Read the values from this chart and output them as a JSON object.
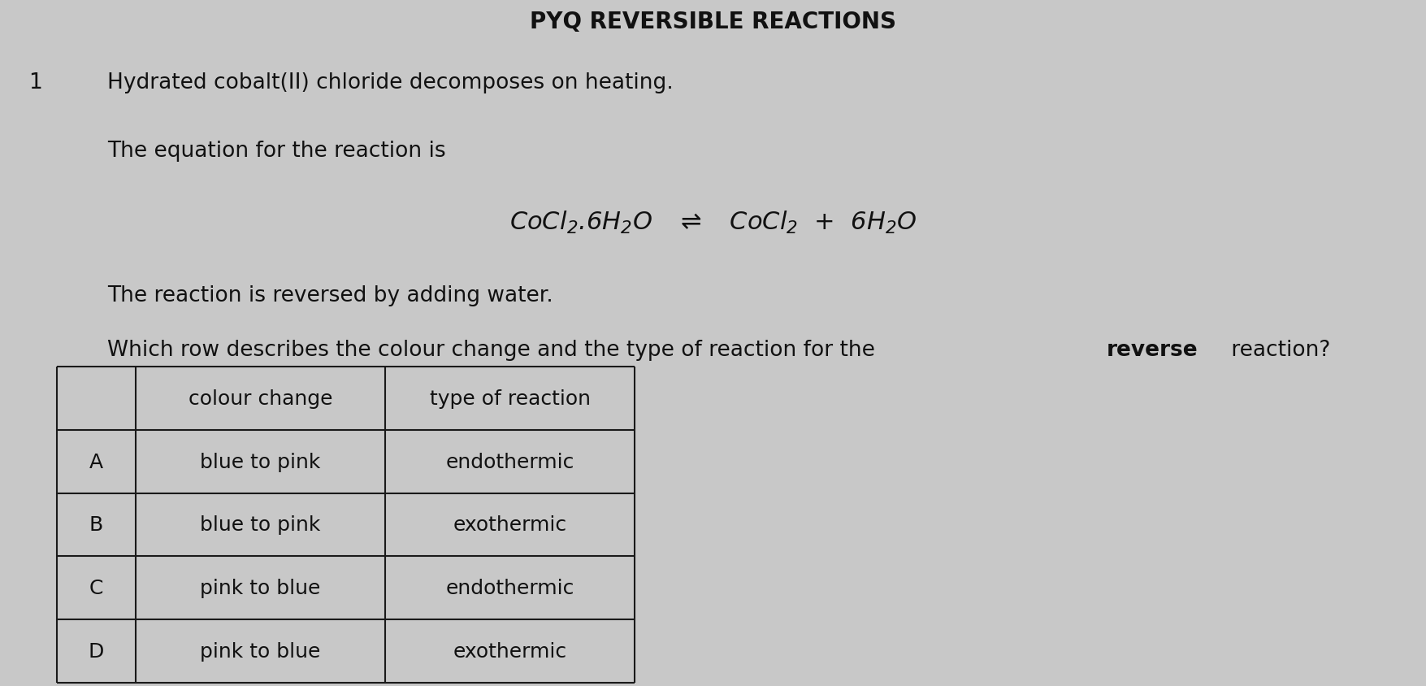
{
  "bg_color": "#c8c8c8",
  "title": "PYQ REVERSIBLE REACTIONS",
  "title_fontsize": 20,
  "number": "1",
  "line1": "Hydrated cobalt(II) chloride decomposes on heating.",
  "line2": "The equation for the reaction is",
  "line3": "The reaction is reversed by adding water.",
  "line4_normal": "Which row describes the colour change and the type of reaction for the ",
  "line4_bold": "reverse",
  "line4_end": " reaction?",
  "table_rows": [
    [
      "",
      "colour change",
      "type of reaction"
    ],
    [
      "A",
      "blue to pink",
      "endothermic"
    ],
    [
      "B",
      "blue to pink",
      "exothermic"
    ],
    [
      "C",
      "pink to blue",
      "endothermic"
    ],
    [
      "D",
      "pink to blue",
      "exothermic"
    ]
  ],
  "text_color": "#111111",
  "font_size_main": 19,
  "font_size_eq": 20,
  "font_size_table": 18
}
